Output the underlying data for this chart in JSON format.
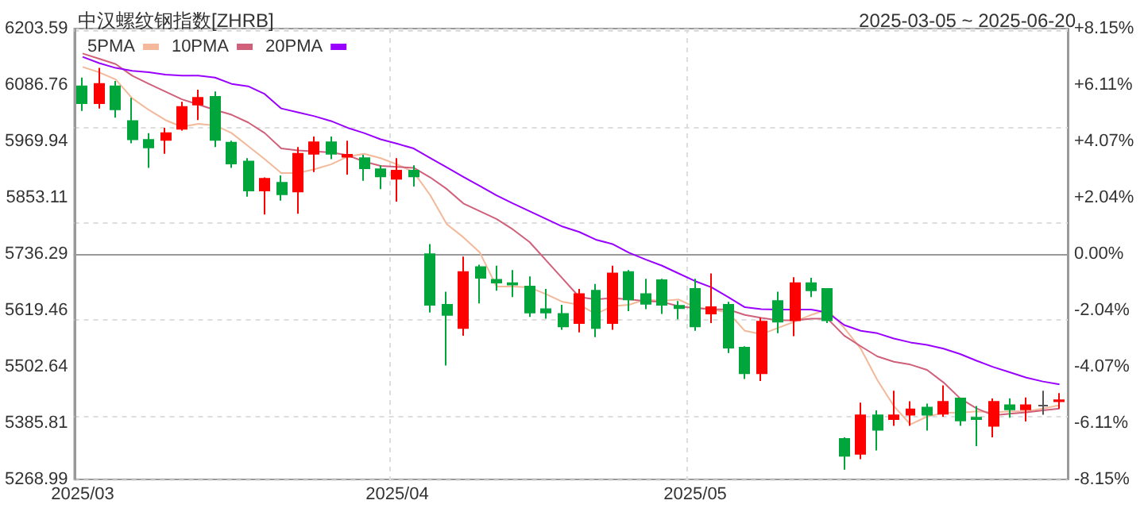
{
  "chart_data": {
    "type": "candlestick",
    "title": "中汉螺纹钢指数[ZHRB]",
    "subtitle": "2025-03-05 ~ 2025-06-20",
    "categories": [
      "2025/03",
      null,
      null,
      null,
      null,
      null,
      null,
      null,
      null,
      null,
      null,
      null,
      null,
      null,
      null,
      null,
      null,
      null,
      null,
      "2025/04",
      null,
      null,
      null,
      null,
      null,
      null,
      null,
      null,
      null,
      null,
      null,
      null,
      null,
      null,
      null,
      null,
      null,
      "2025/05",
      null,
      null,
      null,
      null,
      null,
      null,
      null,
      null,
      null,
      null,
      null,
      null,
      null,
      null,
      null,
      null,
      null,
      null,
      null,
      null,
      null,
      null
    ],
    "series": [
      {
        "type": "candlestick",
        "ohlc": [
          [
            6084,
            6102,
            6033,
            6049
          ],
          [
            6049,
            6122,
            6038,
            6089
          ],
          [
            6084,
            6095,
            6019,
            6036
          ],
          [
            6012,
            6060,
            5966,
            5974
          ],
          [
            5973,
            5987,
            5915,
            5957
          ],
          [
            5973,
            5998,
            5944,
            5987
          ],
          [
            5996,
            6052,
            5992,
            6041
          ],
          [
            6046,
            6077,
            6014,
            6060
          ],
          [
            6062,
            6073,
            5958,
            5973
          ],
          [
            5967,
            5971,
            5915,
            5924
          ],
          [
            5928,
            5935,
            5855,
            5868
          ],
          [
            5868,
            5895,
            5818,
            5892
          ],
          [
            5884,
            5899,
            5847,
            5860
          ],
          [
            5866,
            5958,
            5820,
            5944
          ],
          [
            5944,
            5980,
            5906,
            5968
          ],
          [
            5968,
            5980,
            5933,
            5944
          ],
          [
            5938,
            5971,
            5901,
            5942
          ],
          [
            5935,
            5942,
            5888,
            5914
          ],
          [
            5912,
            5920,
            5871,
            5897
          ],
          [
            5892,
            5935,
            5845,
            5909
          ],
          [
            5909,
            5920,
            5876,
            5897
          ],
          [
            5736,
            5757,
            5615,
            5631
          ],
          [
            5631,
            5658,
            5505,
            5610
          ],
          [
            5583,
            5731,
            5567,
            5699
          ],
          [
            5709,
            5714,
            5634,
            5687
          ],
          [
            5683,
            5712,
            5660,
            5677
          ],
          [
            5676,
            5703,
            5647,
            5673
          ],
          [
            5669,
            5690,
            5606,
            5615
          ],
          [
            5622,
            5664,
            5602,
            5615
          ],
          [
            5612,
            5631,
            5579,
            5586
          ],
          [
            5593,
            5664,
            5574,
            5653
          ],
          [
            5660,
            5674,
            5564,
            5583
          ],
          [
            5593,
            5712,
            5579,
            5696
          ],
          [
            5699,
            5703,
            5618,
            5642
          ],
          [
            5653,
            5685,
            5622,
            5633
          ],
          [
            5682,
            5685,
            5612,
            5631
          ],
          [
            5629,
            5639,
            5601,
            5624
          ],
          [
            5664,
            5685,
            5577,
            5586
          ],
          [
            5613,
            5696,
            5593,
            5626
          ],
          [
            5631,
            5637,
            5531,
            5542
          ],
          [
            5542,
            5545,
            5477,
            5489
          ],
          [
            5489,
            5604,
            5473,
            5596
          ],
          [
            5639,
            5658,
            5572,
            5596
          ],
          [
            5599,
            5688,
            5566,
            5676
          ],
          [
            5676,
            5687,
            5647,
            5661
          ],
          [
            5664,
            5664,
            5593,
            5599
          ],
          [
            5353,
            5356,
            5289,
            5318
          ],
          [
            5322,
            5428,
            5311,
            5402
          ],
          [
            5402,
            5412,
            5329,
            5372
          ],
          [
            5394,
            5453,
            5380,
            5402
          ],
          [
            5403,
            5431,
            5380,
            5414
          ],
          [
            5418,
            5426,
            5370,
            5403
          ],
          [
            5405,
            5464,
            5399,
            5430
          ],
          [
            5437,
            5437,
            5380,
            5391
          ],
          [
            5397,
            5421,
            5338,
            5394
          ],
          [
            5380,
            5437,
            5356,
            5430
          ],
          [
            5423,
            5437,
            5397,
            5414
          ],
          [
            5414,
            5439,
            5389,
            5423
          ],
          [
            5422,
            5453,
            5403,
            5422
          ],
          [
            5431,
            5448,
            5416,
            5433
          ]
        ],
        "colors": [
          "#00a53c",
          "#ff0000",
          "#00a53c",
          "#00a53c",
          "#00a53c",
          "#ff0000",
          "#ff0000",
          "#ff0000",
          "#00a53c",
          "#00a53c",
          "#00a53c",
          "#ff0000",
          "#00a53c",
          "#ff0000",
          "#ff0000",
          "#00a53c",
          "#ff0000",
          "#00a53c",
          "#00a53c",
          "#ff0000",
          "#00a53c",
          "#00a53c",
          "#00a53c",
          "#ff0000",
          "#00a53c",
          "#00a53c",
          "#00a53c",
          "#00a53c",
          "#00a53c",
          "#00a53c",
          "#ff0000",
          "#00a53c",
          "#ff0000",
          "#00a53c",
          "#00a53c",
          "#00a53c",
          "#00a53c",
          "#00a53c",
          "#ff0000",
          "#00a53c",
          "#00a53c",
          "#ff0000",
          "#00a53c",
          "#ff0000",
          "#00a53c",
          "#00a53c",
          "#00a53c",
          "#ff0000",
          "#00a53c",
          "#ff0000",
          "#ff0000",
          "#00a53c",
          "#ff0000",
          "#00a53c",
          "#00a53c",
          "#ff0000",
          "#00a53c",
          "#ff0000",
          "#555555",
          "#ff0000"
        ]
      },
      {
        "type": "line",
        "name": "5PMA",
        "color": "#f4b89a",
        "values": [
          6124,
          6113,
          6098,
          6059,
          6035,
          6014,
          6000,
          6006,
          6003,
          5987,
          5960,
          5933,
          5904,
          5904,
          5912,
          5922,
          5938,
          5944,
          5935,
          5922,
          5906,
          5858,
          5798,
          5771,
          5739,
          5669,
          5669,
          5667,
          5653,
          5637,
          5631,
          5612,
          5628,
          5631,
          5642,
          5639,
          5642,
          5626,
          5621,
          5615,
          5577,
          5570,
          5583,
          5596,
          5610,
          5621,
          5583,
          5540,
          5475,
          5421,
          5383,
          5399,
          5407,
          5407,
          5410,
          5408,
          5410,
          5410,
          5416,
          5423
        ]
      },
      {
        "type": "line",
        "name": "10PMA",
        "color": "#d0607a",
        "values": [
          6152,
          6141,
          6130,
          6106,
          6089,
          6073,
          6057,
          6046,
          6035,
          6025,
          6009,
          5987,
          5955,
          5951,
          5949,
          5947,
          5941,
          5928,
          5919,
          5917,
          5915,
          5895,
          5871,
          5841,
          5825,
          5809,
          5787,
          5761,
          5723,
          5685,
          5647,
          5642,
          5645,
          5642,
          5639,
          5637,
          5628,
          5624,
          5622,
          5621,
          5610,
          5604,
          5599,
          5599,
          5602,
          5602,
          5567,
          5545,
          5524,
          5513,
          5507,
          5496,
          5470,
          5437,
          5416,
          5402,
          5405,
          5408,
          5412,
          5416
        ]
      },
      {
        "type": "line",
        "name": "20PMA",
        "color": "#9900ff",
        "values": [
          6145,
          6132,
          6122,
          6116,
          6113,
          6108,
          6106,
          6106,
          6102,
          6089,
          6084,
          6068,
          6038,
          6030,
          6022,
          6012,
          5998,
          5987,
          5974,
          5965,
          5955,
          5935,
          5916,
          5896,
          5877,
          5858,
          5841,
          5825,
          5809,
          5793,
          5782,
          5766,
          5757,
          5739,
          5725,
          5712,
          5696,
          5680,
          5667,
          5647,
          5626,
          5622,
          5621,
          5621,
          5621,
          5615,
          5589,
          5577,
          5572,
          5561,
          5553,
          5548,
          5540,
          5529,
          5515,
          5502,
          5491,
          5480,
          5472,
          5466
        ]
      }
    ],
    "ylim": [
      5268.99,
      6203.59
    ],
    "yticks": [
      5268.99,
      5385.81,
      5502.64,
      5619.46,
      5736.29,
      5853.11,
      5969.94,
      6086.76,
      6203.59
    ],
    "y2lim": [
      -8.15,
      8.15
    ],
    "y2ticks": [
      {
        "value": -8.15,
        "label": "-8.15%"
      },
      {
        "value": -6.11,
        "label": "-6.11%"
      },
      {
        "value": -4.07,
        "label": "-4.07%"
      },
      {
        "value": -2.04,
        "label": "-2.04%"
      },
      {
        "value": 0,
        "label": "0.00%"
      },
      {
        "value": 2.04,
        "label": "+2.04%"
      },
      {
        "value": 4.07,
        "label": "+4.07%"
      },
      {
        "value": 6.11,
        "label": "+6.11%"
      },
      {
        "value": 8.15,
        "label": "+8.15%"
      }
    ],
    "grid": true,
    "legend": "top left",
    "marker": "none"
  }
}
